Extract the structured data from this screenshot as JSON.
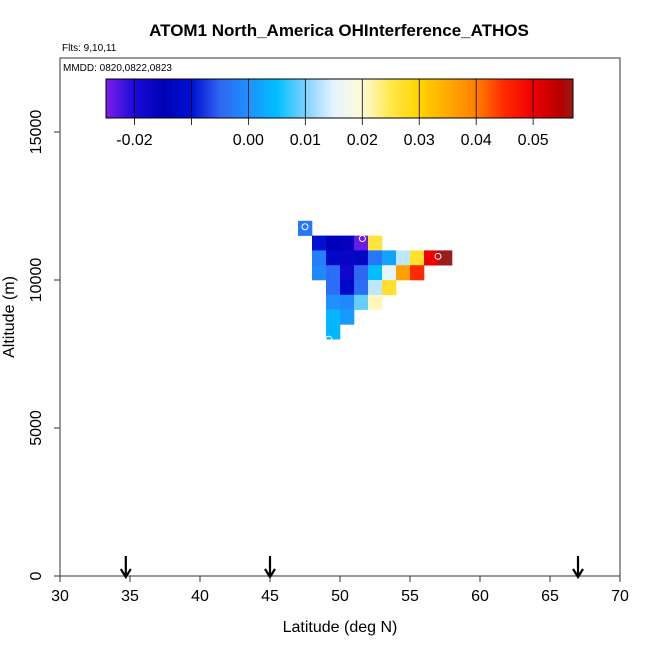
{
  "chart_data": {
    "type": "heatmap",
    "title": "ATOM1 North_America OHInterference_ATHOS",
    "flights_label": "Flts: 9,10,11",
    "dates_label": "MMDD: 0820,0822,0823",
    "xlabel": "Latitude (deg N)",
    "ylabel": "Altitude (m)",
    "xlim": [
      30,
      70
    ],
    "ylim": [
      0,
      17500
    ],
    "x_ticks": [
      30,
      35,
      40,
      45,
      50,
      55,
      60,
      65,
      70
    ],
    "y_ticks": [
      0,
      5000,
      10000,
      15000
    ],
    "y_tick_labels": [
      "0",
      "5000",
      "10000",
      "15000"
    ],
    "cell_size": {
      "lat": 1,
      "alt": 500
    },
    "colorbar": {
      "min": -0.025,
      "max": 0.057,
      "tick_values": [
        -0.02,
        0.0,
        0.01,
        0.02,
        0.03,
        0.04,
        0.05
      ],
      "tick_labels": [
        "-0.02",
        "0.00",
        "0.01",
        "0.02",
        "0.03",
        "0.04",
        "0.05"
      ],
      "stops": [
        {
          "v": -0.025,
          "c": "#7b1fe8"
        },
        {
          "v": -0.02,
          "c": "#1a0bd8"
        },
        {
          "v": -0.015,
          "c": "#0000b8"
        },
        {
          "v": -0.01,
          "c": "#0010d0"
        },
        {
          "v": -0.005,
          "c": "#2f66f2"
        },
        {
          "v": 0.0,
          "c": "#1e90ff"
        },
        {
          "v": 0.005,
          "c": "#00bfff"
        },
        {
          "v": 0.01,
          "c": "#7fd0ff"
        },
        {
          "v": 0.015,
          "c": "#e6f4ff"
        },
        {
          "v": 0.02,
          "c": "#fffbd8"
        },
        {
          "v": 0.025,
          "c": "#ffe84a"
        },
        {
          "v": 0.03,
          "c": "#ffd400"
        },
        {
          "v": 0.035,
          "c": "#ffaa00"
        },
        {
          "v": 0.04,
          "c": "#ff7f00"
        },
        {
          "v": 0.045,
          "c": "#ff2a00"
        },
        {
          "v": 0.05,
          "c": "#ee0000"
        },
        {
          "v": 0.055,
          "c": "#b40000"
        },
        {
          "v": 0.057,
          "c": "#9b1c1c"
        }
      ]
    },
    "cells": [
      {
        "lat": 47.5,
        "alt": 11750,
        "value": -0.003
      },
      {
        "lat": 48.5,
        "alt": 11250,
        "value": -0.01
      },
      {
        "lat": 49.5,
        "alt": 11250,
        "value": -0.015
      },
      {
        "lat": 50.5,
        "alt": 11250,
        "value": -0.016
      },
      {
        "lat": 51.5,
        "alt": 11250,
        "value": -0.024
      },
      {
        "lat": 52.5,
        "alt": 11250,
        "value": 0.026
      },
      {
        "lat": 48.5,
        "alt": 10750,
        "value": -0.002
      },
      {
        "lat": 49.5,
        "alt": 10750,
        "value": -0.012
      },
      {
        "lat": 50.5,
        "alt": 10750,
        "value": -0.017
      },
      {
        "lat": 51.5,
        "alt": 10750,
        "value": -0.013
      },
      {
        "lat": 52.5,
        "alt": 10750,
        "value": -0.003
      },
      {
        "lat": 53.5,
        "alt": 10750,
        "value": 0.002
      },
      {
        "lat": 54.5,
        "alt": 10750,
        "value": 0.013
      },
      {
        "lat": 55.5,
        "alt": 10750,
        "value": 0.027
      },
      {
        "lat": 56.5,
        "alt": 10750,
        "value": 0.05
      },
      {
        "lat": 57.5,
        "alt": 10750,
        "value": 0.057
      },
      {
        "lat": 48.5,
        "alt": 10250,
        "value": -0.001
      },
      {
        "lat": 49.5,
        "alt": 10250,
        "value": -0.004
      },
      {
        "lat": 50.5,
        "alt": 10250,
        "value": -0.018
      },
      {
        "lat": 51.5,
        "alt": 10250,
        "value": -0.005
      },
      {
        "lat": 52.5,
        "alt": 10250,
        "value": 0.005
      },
      {
        "lat": 53.5,
        "alt": 10250,
        "value": 0.015
      },
      {
        "lat": 54.5,
        "alt": 10250,
        "value": 0.036
      },
      {
        "lat": 55.5,
        "alt": 10250,
        "value": 0.045
      },
      {
        "lat": 49.5,
        "alt": 9750,
        "value": -0.004
      },
      {
        "lat": 50.5,
        "alt": 9750,
        "value": -0.012
      },
      {
        "lat": 51.5,
        "alt": 9750,
        "value": -0.004
      },
      {
        "lat": 52.5,
        "alt": 9750,
        "value": 0.013
      },
      {
        "lat": 53.5,
        "alt": 9750,
        "value": 0.027
      },
      {
        "lat": 49.5,
        "alt": 9250,
        "value": 0.0
      },
      {
        "lat": 50.5,
        "alt": 9250,
        "value": -0.001
      },
      {
        "lat": 51.5,
        "alt": 9250,
        "value": 0.009
      },
      {
        "lat": 52.5,
        "alt": 9250,
        "value": 0.021
      },
      {
        "lat": 49.5,
        "alt": 8750,
        "value": 0.004
      },
      {
        "lat": 50.5,
        "alt": 8750,
        "value": 0.001
      },
      {
        "lat": 49.5,
        "alt": 8250,
        "value": 0.004
      }
    ],
    "circle_markers": [
      {
        "lat": 47.5,
        "alt": 11800
      },
      {
        "lat": 51.6,
        "alt": 11400
      },
      {
        "lat": 57.0,
        "alt": 10800
      },
      {
        "lat": 49.2,
        "alt": 8000
      }
    ],
    "arrows": [
      34.7,
      45.0,
      67.0
    ]
  }
}
